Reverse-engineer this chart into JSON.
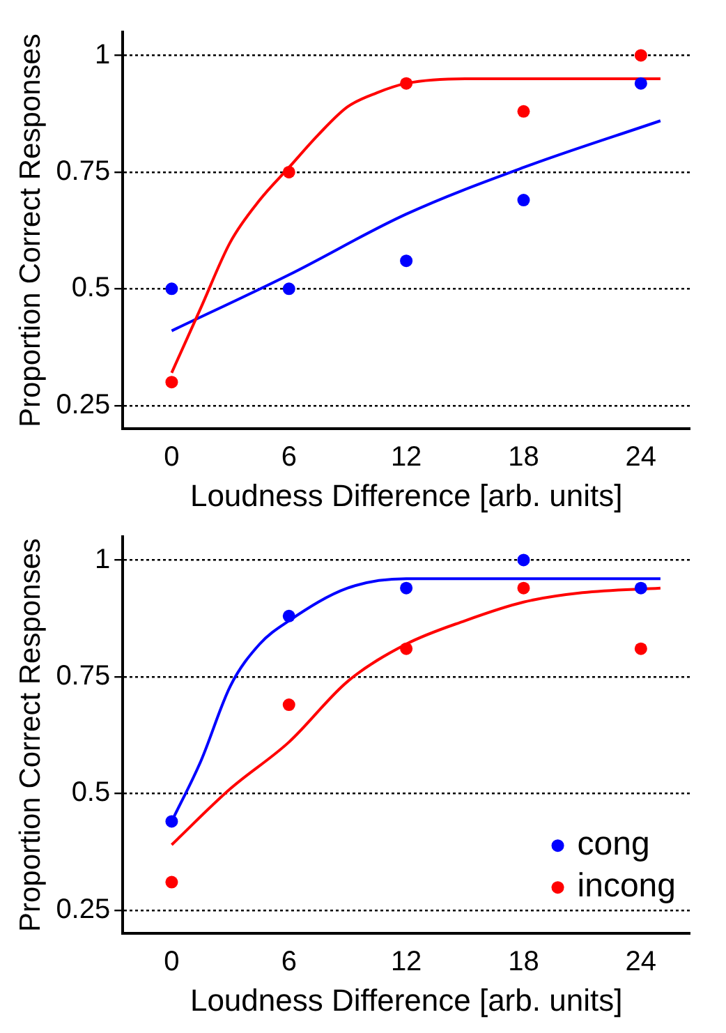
{
  "chart_data": [
    {
      "type": "scatter",
      "xlabel": "Loudness Difference [arb. units]",
      "ylabel": "Proportion Correct Responses",
      "xlim": [
        -2.5,
        26.5
      ],
      "xticks": [
        0,
        6,
        12,
        18,
        24
      ],
      "ylim": [
        0.2,
        1.05
      ],
      "yticks": [
        0.25,
        0.5,
        0.75,
        1
      ],
      "grid": "y",
      "marker": "circle",
      "legend": false,
      "series": [
        {
          "type": "scatter",
          "color": "#0000ff",
          "x": [
            0,
            6,
            12,
            18,
            24
          ],
          "values": [
            0.5,
            0.5,
            0.56,
            0.69,
            0.94
          ]
        },
        {
          "type": "scatter",
          "color": "#ff0000",
          "x": [
            0,
            6,
            12,
            18,
            24
          ],
          "values": [
            0.3,
            0.75,
            0.94,
            0.88,
            1
          ]
        },
        {
          "type": "line",
          "marker": "none",
          "color": "#ff0000",
          "x": [
            0,
            1.5,
            3,
            4.5,
            6,
            7.5,
            9,
            10.5,
            12,
            15,
            18,
            25
          ],
          "values": [
            0.32,
            0.46,
            0.6,
            0.69,
            0.76,
            0.83,
            0.89,
            0.92,
            0.94,
            0.95,
            0.95,
            0.95
          ]
        },
        {
          "type": "line",
          "marker": "none",
          "color": "#0000ff",
          "x": [
            0,
            6,
            12,
            18,
            25
          ],
          "values": [
            0.41,
            0.53,
            0.66,
            0.76,
            0.86
          ]
        }
      ]
    },
    {
      "type": "scatter",
      "xlabel": "Loudness Difference [arb. units]",
      "ylabel": "Proportion Correct Responses",
      "xlim": [
        -2.5,
        26.5
      ],
      "xticks": [
        0,
        6,
        12,
        18,
        24
      ],
      "ylim": [
        0.2,
        1.05
      ],
      "yticks": [
        0.25,
        0.5,
        0.75,
        1
      ],
      "grid": "y",
      "marker": "circle",
      "legend": "bottom right",
      "series": [
        {
          "type": "scatter",
          "name": "cong",
          "color": "#0000ff",
          "x": [
            0,
            6,
            12,
            18,
            24
          ],
          "values": [
            0.44,
            0.88,
            0.94,
            1,
            0.94
          ]
        },
        {
          "type": "scatter",
          "name": "incong",
          "color": "#ff0000",
          "x": [
            0,
            6,
            12,
            18,
            24
          ],
          "values": [
            0.31,
            0.69,
            0.81,
            0.94,
            0.81
          ]
        },
        {
          "type": "line",
          "marker": "none",
          "color": "#0000ff",
          "x": [
            0,
            1.5,
            3,
            4.5,
            6,
            9,
            12,
            25
          ],
          "values": [
            0.44,
            0.57,
            0.73,
            0.82,
            0.87,
            0.94,
            0.96,
            0.96
          ]
        },
        {
          "type": "line",
          "marker": "none",
          "color": "#ff0000",
          "x": [
            0,
            3,
            6,
            9,
            12,
            15,
            18,
            21,
            25
          ],
          "values": [
            0.39,
            0.51,
            0.61,
            0.74,
            0.82,
            0.87,
            0.91,
            0.93,
            0.94
          ]
        }
      ]
    }
  ]
}
